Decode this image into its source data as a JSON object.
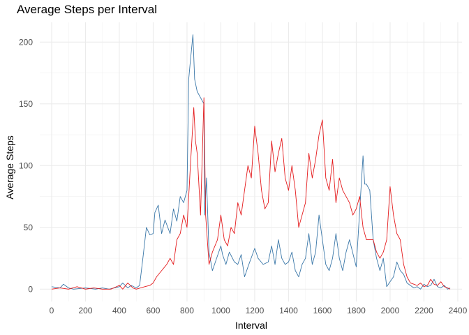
{
  "chart_data": {
    "type": "line",
    "title": "Average Steps per Interval",
    "xlabel": "Interval",
    "ylabel": "Average Steps",
    "xlim": [
      -70,
      2425
    ],
    "ylim": [
      -10,
      216
    ],
    "xticks": [
      0,
      200,
      400,
      600,
      800,
      1000,
      1200,
      1400,
      1600,
      1800,
      2000,
      2200,
      2400
    ],
    "yticks": [
      0,
      50,
      100,
      150,
      200
    ],
    "grid": true,
    "legend": "none",
    "series": [
      {
        "color": "#3a77a8",
        "x": [
          0,
          50,
          70,
          100,
          130,
          200,
          260,
          300,
          340,
          400,
          420,
          450,
          470,
          500,
          520,
          540,
          560,
          580,
          600,
          610,
          630,
          650,
          670,
          700,
          720,
          740,
          760,
          780,
          800,
          810,
          820,
          835,
          845,
          860,
          900,
          905,
          915,
          930,
          950,
          1000,
          1010,
          1030,
          1050,
          1080,
          1100,
          1120,
          1140,
          1160,
          1200,
          1220,
          1250,
          1280,
          1300,
          1320,
          1340,
          1360,
          1380,
          1400,
          1420,
          1440,
          1460,
          1480,
          1500,
          1520,
          1540,
          1560,
          1580,
          1600,
          1620,
          1640,
          1660,
          1680,
          1700,
          1720,
          1740,
          1760,
          1800,
          1840,
          1850,
          1860,
          1880,
          1900,
          1920,
          1940,
          1960,
          1980,
          2000,
          2020,
          2040,
          2060,
          2080,
          2100,
          2120,
          2140,
          2160,
          2180,
          2200,
          2220,
          2240,
          2260,
          2280,
          2300,
          2320,
          2340,
          2355
        ],
        "y": [
          2,
          1,
          4,
          1,
          0,
          1,
          0,
          1,
          0,
          2,
          5,
          1,
          3,
          1,
          3,
          26,
          50,
          44,
          45,
          62,
          68,
          45,
          56,
          45,
          65,
          55,
          75,
          70,
          80,
          170,
          185,
          206,
          170,
          160,
          150,
          60,
          90,
          30,
          15,
          35,
          28,
          20,
          30,
          22,
          20,
          28,
          10,
          18,
          33,
          25,
          20,
          22,
          35,
          20,
          40,
          25,
          20,
          22,
          30,
          15,
          10,
          20,
          25,
          45,
          20,
          30,
          60,
          40,
          20,
          15,
          25,
          45,
          25,
          15,
          30,
          40,
          18,
          108,
          85,
          85,
          80,
          40,
          25,
          15,
          25,
          2,
          6,
          10,
          22,
          15,
          12,
          5,
          3,
          1,
          2,
          0,
          4,
          2,
          3,
          8,
          2,
          1,
          3,
          0,
          1
        ]
      },
      {
        "color": "#e41a1c",
        "x": [
          0,
          50,
          100,
          150,
          200,
          250,
          300,
          350,
          400,
          420,
          450,
          480,
          500,
          550,
          580,
          600,
          620,
          650,
          680,
          700,
          720,
          740,
          760,
          780,
          800,
          820,
          840,
          850,
          860,
          880,
          900,
          910,
          920,
          930,
          950,
          980,
          1000,
          1020,
          1040,
          1060,
          1080,
          1100,
          1120,
          1140,
          1160,
          1180,
          1200,
          1220,
          1240,
          1260,
          1280,
          1300,
          1320,
          1340,
          1360,
          1380,
          1400,
          1420,
          1440,
          1460,
          1480,
          1500,
          1520,
          1540,
          1560,
          1580,
          1600,
          1620,
          1640,
          1660,
          1680,
          1700,
          1720,
          1740,
          1760,
          1780,
          1800,
          1820,
          1840,
          1860,
          1880,
          1900,
          1920,
          1940,
          1960,
          1980,
          2000,
          2020,
          2040,
          2060,
          2080,
          2100,
          2120,
          2140,
          2160,
          2180,
          2200,
          2220,
          2240,
          2260,
          2280,
          2300,
          2320,
          2340,
          2355
        ],
        "y": [
          0,
          1,
          0,
          2,
          0,
          1,
          0,
          0,
          3,
          0,
          5,
          1,
          0,
          2,
          3,
          5,
          10,
          15,
          20,
          25,
          20,
          40,
          45,
          60,
          50,
          100,
          147,
          120,
          110,
          60,
          155,
          60,
          40,
          20,
          30,
          40,
          60,
          40,
          35,
          50,
          45,
          70,
          60,
          80,
          100,
          90,
          132,
          110,
          80,
          65,
          70,
          120,
          95,
          110,
          122,
          90,
          80,
          100,
          80,
          50,
          60,
          70,
          110,
          90,
          105,
          125,
          137,
          90,
          80,
          105,
          70,
          90,
          80,
          75,
          70,
          60,
          65,
          75,
          50,
          40,
          40,
          40,
          30,
          25,
          30,
          40,
          83,
          60,
          45,
          40,
          20,
          10,
          5,
          4,
          3,
          5,
          2,
          3,
          8,
          4,
          3,
          6,
          2,
          1,
          0
        ]
      }
    ]
  }
}
